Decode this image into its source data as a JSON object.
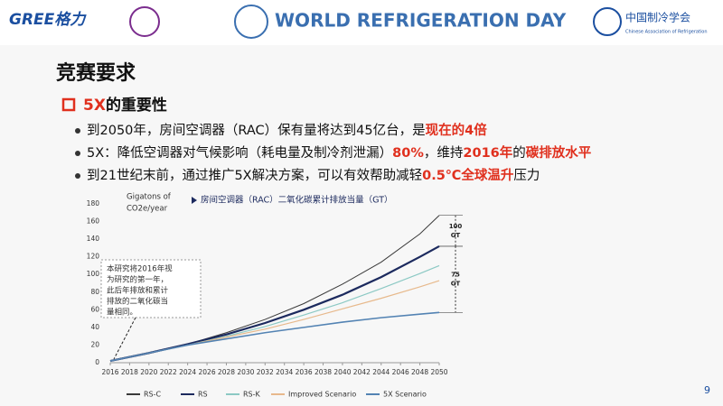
{
  "header": {
    "left_logo": "GREE格力",
    "center_logo": "WORLD REFRIGERATION DAY",
    "right_logo": "中国制冷学会",
    "right_logo_sub": "Chinese Association of Refrigeration"
  },
  "title": "竞赛要求",
  "subheading": [
    {
      "text": "5X",
      "color": "#e0301e"
    },
    {
      "text": "的重要性"
    }
  ],
  "bullets": [
    [
      {
        "text": "到2050年，房间空调器（RAC）保有量将达到45亿台，是"
      },
      {
        "text": "现在的4倍",
        "color": "#e0301e"
      }
    ],
    [
      {
        "text": "5X：降低空调器对气候影响（耗电量及制冷剂泄漏）"
      },
      {
        "text": "80%",
        "color": "#e0301e"
      },
      {
        "text": "，维持"
      },
      {
        "text": "2016年",
        "color": "#e0301e"
      },
      {
        "text": "的"
      },
      {
        "text": "碳排放水平",
        "color": "#e0301e"
      }
    ],
    [
      {
        "text": "到21世纪末前，通过推广5X解决方案，可以有效帮助减轻"
      },
      {
        "text": "0.5℃全球温升",
        "color": "#e0301e"
      },
      {
        "text": "压力"
      }
    ]
  ],
  "page_number": "9",
  "chart_data": {
    "type": "line",
    "title": "房间空调器（RAC）二氧化碳累计排放当量（GT）",
    "y_label": [
      "Gigatons of",
      "CO2e/year"
    ],
    "note_lines": [
      "本研究将2016年视",
      "为研究的第一年，",
      "此后年排放和累计",
      "排放的二氧化碳当",
      "量相同。"
    ],
    "bracket_labels": [
      [
        "100",
        "GT"
      ],
      [
        "75",
        "GT"
      ]
    ],
    "x": [
      2016,
      2020,
      2024,
      2028,
      2032,
      2036,
      2040,
      2044,
      2048,
      2050
    ],
    "series": [
      {
        "name": "RS-C",
        "color": "#3a3a3a",
        "width": 1,
        "values": [
          2,
          11,
          21,
          34,
          49,
          67,
          89,
          114,
          146,
          167
        ]
      },
      {
        "name": "RS",
        "color": "#1c2a5e",
        "width": 2.2,
        "values": [
          2,
          11,
          21,
          32,
          45,
          60,
          77,
          97,
          120,
          132
        ]
      },
      {
        "name": "RS-K",
        "color": "#8cc9c4",
        "width": 1.2,
        "values": [
          2,
          11,
          20,
          30,
          41,
          54,
          68,
          84,
          101,
          110
        ]
      },
      {
        "name": "Improved Scenario",
        "color": "#e7b98c",
        "width": 1.2,
        "values": [
          2,
          11,
          20,
          29,
          38,
          49,
          61,
          73,
          86,
          93
        ]
      },
      {
        "name": "5X Scenario",
        "color": "#5383b3",
        "width": 1.6,
        "values": [
          2,
          11,
          20,
          27,
          34,
          40,
          46,
          51,
          55,
          57
        ]
      }
    ],
    "xlim": [
      2016,
      2050
    ],
    "xticks": [
      2016,
      2018,
      2020,
      2022,
      2024,
      2026,
      2028,
      2030,
      2032,
      2034,
      2036,
      2038,
      2040,
      2042,
      2044,
      2046,
      2048,
      2050
    ],
    "ylim": [
      0,
      180
    ],
    "yticks": [
      0,
      20,
      40,
      60,
      80,
      100,
      120,
      140,
      160,
      180
    ],
    "grid": false
  }
}
